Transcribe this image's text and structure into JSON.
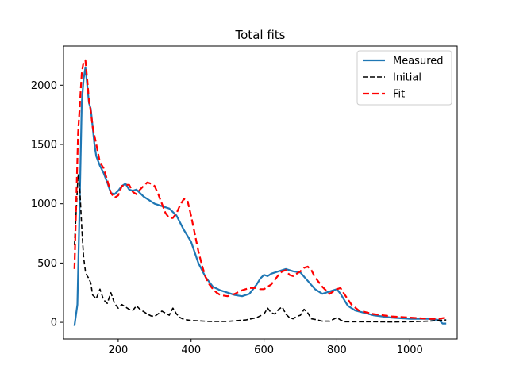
{
  "chart_data": {
    "type": "line",
    "title": "Total fits",
    "xlabel": "",
    "ylabel": "",
    "xlim": [
      50,
      1130
    ],
    "ylim": [
      -140,
      2330
    ],
    "xticks": [
      200,
      400,
      600,
      800,
      1000
    ],
    "yticks": [
      0,
      500,
      1000,
      1500,
      2000
    ],
    "grid": false,
    "legend_position": "top-right",
    "series": [
      {
        "name": "Measured",
        "color": "#1f77b4",
        "style": "solid",
        "x": [
          80,
          88,
          95,
          100,
          105,
          110,
          115,
          120,
          125,
          130,
          135,
          140,
          150,
          160,
          170,
          180,
          190,
          200,
          210,
          220,
          230,
          240,
          250,
          260,
          270,
          280,
          290,
          300,
          320,
          340,
          360,
          380,
          400,
          420,
          440,
          460,
          480,
          500,
          520,
          540,
          560,
          570,
          580,
          590,
          600,
          610,
          620,
          640,
          660,
          680,
          700,
          720,
          740,
          760,
          780,
          800,
          810,
          820,
          830,
          850,
          900,
          950,
          1000,
          1050,
          1080,
          1090,
          1100
        ],
        "y": [
          -30,
          150,
          1100,
          1850,
          2050,
          2150,
          2000,
          1850,
          1800,
          1650,
          1500,
          1400,
          1320,
          1260,
          1180,
          1090,
          1080,
          1110,
          1150,
          1170,
          1120,
          1110,
          1120,
          1090,
          1060,
          1040,
          1020,
          1000,
          980,
          960,
          900,
          780,
          680,
          500,
          380,
          300,
          270,
          250,
          230,
          220,
          240,
          280,
          320,
          370,
          400,
          390,
          410,
          430,
          450,
          430,
          420,
          350,
          280,
          240,
          260,
          280,
          240,
          190,
          140,
          100,
          60,
          40,
          30,
          30,
          20,
          -10,
          -10
        ]
      },
      {
        "name": "Initial",
        "color": "#000000",
        "style": "dashed",
        "x": [
          80,
          85,
          90,
          95,
          100,
          105,
          110,
          115,
          120,
          125,
          130,
          140,
          150,
          160,
          170,
          180,
          190,
          200,
          210,
          220,
          230,
          240,
          250,
          260,
          270,
          280,
          290,
          300,
          320,
          340,
          350,
          360,
          370,
          380,
          400,
          450,
          500,
          550,
          580,
          600,
          610,
          620,
          630,
          640,
          650,
          660,
          670,
          680,
          690,
          700,
          710,
          720,
          730,
          740,
          760,
          780,
          800,
          810,
          820,
          850,
          900,
          950,
          1000,
          1050,
          1100
        ],
        "y": [
          650,
          950,
          1250,
          1100,
          800,
          550,
          430,
          390,
          370,
          330,
          230,
          200,
          280,
          190,
          160,
          250,
          160,
          120,
          150,
          130,
          110,
          100,
          140,
          110,
          90,
          70,
          55,
          50,
          95,
          60,
          120,
          70,
          40,
          25,
          15,
          8,
          8,
          20,
          40,
          70,
          120,
          80,
          70,
          110,
          130,
          70,
          40,
          30,
          50,
          60,
          110,
          80,
          30,
          25,
          10,
          10,
          40,
          20,
          5,
          5,
          5,
          3,
          5,
          10,
          20
        ]
      },
      {
        "name": "Fit",
        "color": "#ff0000",
        "style": "dashed",
        "x": [
          80,
          90,
          100,
          105,
          110,
          115,
          120,
          125,
          130,
          140,
          150,
          160,
          170,
          180,
          190,
          200,
          210,
          220,
          230,
          240,
          250,
          260,
          270,
          280,
          290,
          300,
          310,
          320,
          330,
          340,
          350,
          360,
          370,
          380,
          390,
          400,
          410,
          420,
          430,
          440,
          450,
          460,
          470,
          480,
          500,
          520,
          540,
          560,
          570,
          580,
          590,
          600,
          620,
          640,
          650,
          660,
          670,
          680,
          700,
          710,
          720,
          730,
          740,
          760,
          780,
          800,
          810,
          820,
          840,
          860,
          900,
          950,
          1000,
          1050,
          1080,
          1100
        ],
        "y": [
          450,
          1600,
          2100,
          2200,
          2210,
          2050,
          1870,
          1780,
          1650,
          1500,
          1350,
          1300,
          1200,
          1090,
          1050,
          1070,
          1150,
          1160,
          1160,
          1100,
          1080,
          1120,
          1150,
          1180,
          1170,
          1150,
          1080,
          1000,
          920,
          880,
          880,
          920,
          990,
          1040,
          1030,
          900,
          750,
          600,
          480,
          380,
          320,
          280,
          250,
          230,
          220,
          240,
          270,
          290,
          290,
          290,
          280,
          280,
          320,
          400,
          430,
          440,
          400,
          390,
          430,
          460,
          470,
          440,
          380,
          300,
          240,
          280,
          290,
          240,
          150,
          100,
          70,
          50,
          40,
          30,
          30,
          40
        ]
      }
    ]
  }
}
